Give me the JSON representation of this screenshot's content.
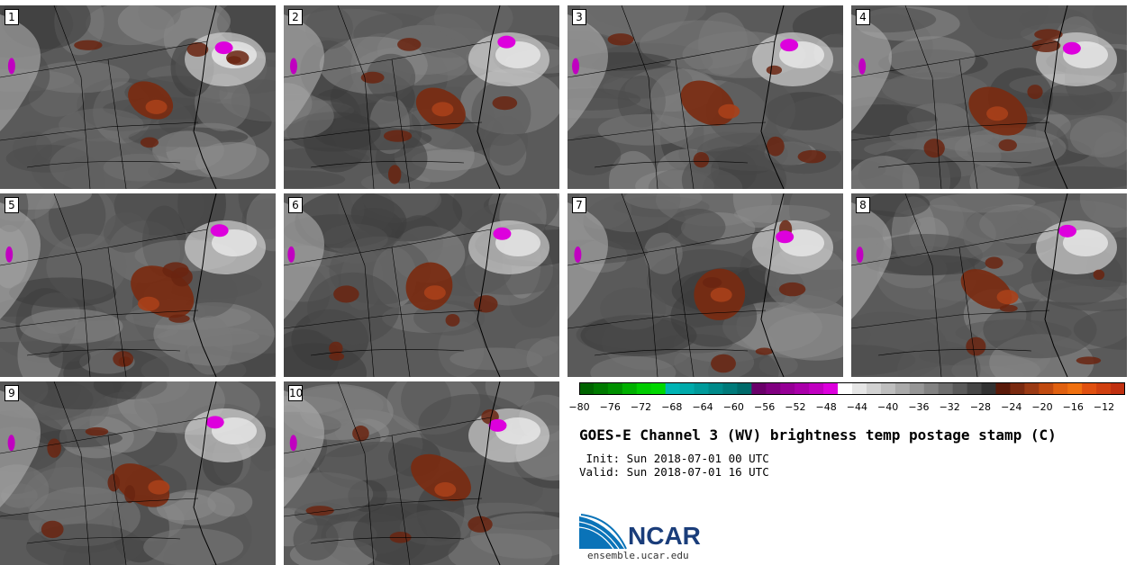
{
  "panels": [
    {
      "label": "1"
    },
    {
      "label": "2"
    },
    {
      "label": "3"
    },
    {
      "label": "4"
    },
    {
      "label": "5"
    },
    {
      "label": "6"
    },
    {
      "label": "7"
    },
    {
      "label": "8"
    },
    {
      "label": "9"
    },
    {
      "label": "10"
    }
  ],
  "colorbar": {
    "ticks": [
      "−80",
      "−76",
      "−72",
      "−68",
      "−64",
      "−60",
      "−56",
      "−52",
      "−48",
      "−44",
      "−40",
      "−36",
      "−32",
      "−28",
      "−24",
      "−20",
      "−16",
      "−12"
    ],
    "colors": [
      "#006400",
      "#007a00",
      "#009000",
      "#00b000",
      "#00cc00",
      "#00d800",
      "#00b4b4",
      "#00aaaa",
      "#009a9a",
      "#008a8a",
      "#007a7a",
      "#006a6a",
      "#6a006a",
      "#800080",
      "#960096",
      "#aa00aa",
      "#c000c0",
      "#dd00dd",
      "#ffffff",
      "#e6e6e6",
      "#d2d2d2",
      "#bebebe",
      "#aaaaaa",
      "#969696",
      "#828282",
      "#6e6e6e",
      "#5a5a5a",
      "#464646",
      "#323232",
      "#5a1a0a",
      "#7a2a10",
      "#9a3a14",
      "#c04a10",
      "#e06010",
      "#f07010",
      "#e05010",
      "#d04010",
      "#c03010"
    ]
  },
  "title": "GOES-E Channel 3 (WV) brightness temp postage stamp (C)",
  "init": " Init: Sun 2018-07-01 00 UTC",
  "valid": "Valid: Sun 2018-07-01 16 UTC",
  "logo": {
    "name": "NCAR",
    "url": "ensemble.ucar.edu"
  }
}
